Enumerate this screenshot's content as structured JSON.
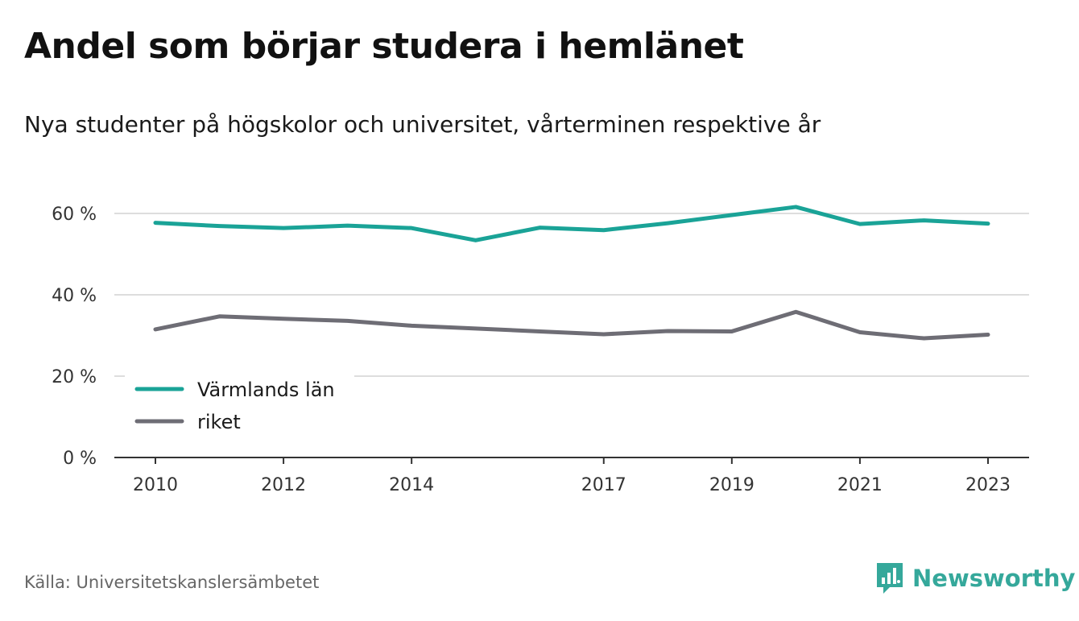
{
  "header": {
    "title": "Andel som börjar studera i hemlänet",
    "subtitle": "Nya studenter på högskolor och universitet, vårterminen respektive år"
  },
  "footer": {
    "source": "Källa: Universitetskanslersämbetet",
    "brand": "Newsworthy",
    "brand_icon": "chart-bubble-icon"
  },
  "colors": {
    "series1": "#1aa397",
    "series2": "#6e6d75",
    "grid": "#dddddd",
    "axis": "#333333",
    "brand": "#35a89b"
  },
  "chart_data": {
    "type": "line",
    "x": [
      2010,
      2011,
      2012,
      2013,
      2014,
      2015,
      2016,
      2017,
      2018,
      2019,
      2020,
      2021,
      2022,
      2023
    ],
    "x_tick_labels": [
      "2010",
      "2012",
      "2014",
      "2017",
      "2019",
      "2021",
      "2023"
    ],
    "x_tick_values": [
      2010,
      2012,
      2014,
      2017,
      2019,
      2021,
      2023
    ],
    "y_ticks": [
      0,
      20,
      40,
      60
    ],
    "y_tick_labels": [
      "0 %",
      "20 %",
      "40 %",
      "60 %"
    ],
    "ylim": [
      0,
      70
    ],
    "grid": true,
    "legend_position": "bottom-left",
    "series": [
      {
        "name": "Värmlands län",
        "values": [
          57.7,
          56.9,
          56.4,
          57.0,
          56.4,
          53.4,
          56.5,
          55.9,
          57.6,
          59.6,
          61.6,
          57.4,
          58.3,
          57.5
        ]
      },
      {
        "name": "riket",
        "values": [
          31.5,
          34.7,
          34.1,
          33.6,
          32.4,
          31.7,
          31.0,
          30.3,
          31.1,
          31.0,
          35.8,
          30.8,
          29.3,
          30.2
        ]
      }
    ]
  }
}
